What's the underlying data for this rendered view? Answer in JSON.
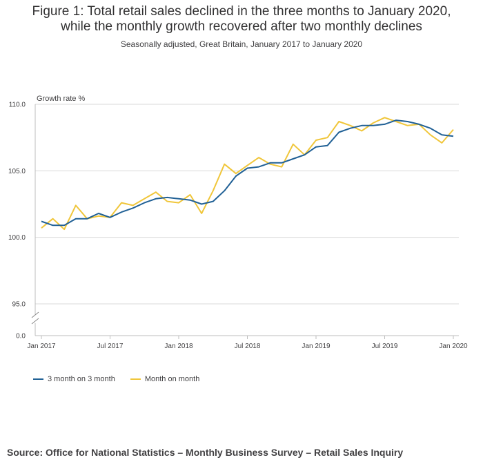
{
  "title_line1": "Figure 1: Total retail sales declined in the three months to January 2020,",
  "title_line2": "while the monthly growth recovered after two monthly declines",
  "subtitle": "Seasonally adjusted, Great Britain, January 2017 to January 2020",
  "source": "Source: Office for National Statistics – Monthly Business Survey – Retail Sales Inquiry",
  "colors": {
    "three_month": "#206095",
    "month_on_month": "#f0c63a",
    "grid": "#d9d9d9",
    "axis": "#bebebe"
  },
  "chart_data": {
    "type": "line",
    "ylabel": "Growth rate %",
    "y_ticks": [
      "110.0",
      "105.0",
      "100.0",
      "95.0",
      "0.0"
    ],
    "ylim": [
      95,
      110
    ],
    "axis_break": true,
    "x_tick_labels": [
      "Jan 2017",
      "Jul 2017",
      "Jan 2018",
      "Jul 2018",
      "Jan 2019",
      "Jul 2019",
      "Jan 2020"
    ],
    "x_tick_index": [
      0,
      6,
      12,
      18,
      24,
      30,
      36
    ],
    "x": [
      "Jan 2017",
      "Feb 2017",
      "Mar 2017",
      "Apr 2017",
      "May 2017",
      "Jun 2017",
      "Jul 2017",
      "Aug 2017",
      "Sep 2017",
      "Oct 2017",
      "Nov 2017",
      "Dec 2017",
      "Jan 2018",
      "Feb 2018",
      "Mar 2018",
      "Apr 2018",
      "May 2018",
      "Jun 2018",
      "Jul 2018",
      "Aug 2018",
      "Sep 2018",
      "Oct 2018",
      "Nov 2018",
      "Dec 2018",
      "Jan 2019",
      "Feb 2019",
      "Mar 2019",
      "Apr 2019",
      "May 2019",
      "Jun 2019",
      "Jul 2019",
      "Aug 2019",
      "Sep 2019",
      "Oct 2019",
      "Nov 2019",
      "Dec 2019",
      "Jan 2020"
    ],
    "legend_position": "bottom-left",
    "series": [
      {
        "name": "3 month on 3 month",
        "values": [
          101.2,
          100.9,
          100.9,
          101.4,
          101.4,
          101.8,
          101.5,
          101.9,
          102.2,
          102.6,
          102.9,
          103.0,
          102.9,
          102.8,
          102.5,
          102.7,
          103.5,
          104.6,
          105.2,
          105.3,
          105.6,
          105.6,
          105.9,
          106.2,
          106.8,
          106.9,
          107.9,
          108.2,
          108.4,
          108.4,
          108.5,
          108.8,
          108.7,
          108.5,
          108.2,
          107.7,
          107.6
        ]
      },
      {
        "name": "Month on month",
        "values": [
          100.7,
          101.4,
          100.6,
          102.4,
          101.4,
          101.6,
          101.5,
          102.6,
          102.4,
          102.9,
          103.4,
          102.7,
          102.6,
          103.2,
          101.8,
          103.5,
          105.5,
          104.8,
          105.4,
          106.0,
          105.5,
          105.3,
          107.0,
          106.2,
          107.3,
          107.5,
          108.7,
          108.4,
          108.0,
          108.6,
          109.0,
          108.7,
          108.4,
          108.5,
          107.7,
          107.1,
          108.1
        ]
      }
    ]
  }
}
